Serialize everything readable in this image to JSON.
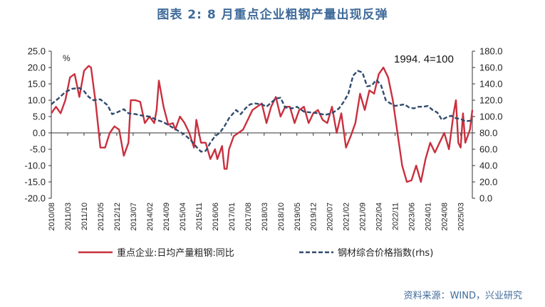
{
  "title": "图表 2:  8 月重点企业粗钢产量出现反弹",
  "source": "资料来源：WIND，兴业研究",
  "colors": {
    "primary": "#c9303e",
    "secondary": "#2f4a6d",
    "title": "#3f6b9a",
    "axis": "#333333"
  },
  "chart_data": {
    "type": "line",
    "title": "图表 2:  8 月重点企业粗钢产量出现反弹",
    "left_axis": {
      "unit_label": "%",
      "range": [
        -20,
        25
      ],
      "ticks": [
        "25.0",
        "20.0",
        "15.0",
        "10.0",
        "5.0",
        "0.0",
        "-5.0",
        "-10.0",
        "-15.0",
        "-20.0"
      ]
    },
    "right_axis": {
      "range": [
        0,
        180
      ],
      "ticks": [
        "180.0",
        "160.0",
        "140.0",
        "120.0",
        "100.0",
        "80.0",
        "60.0",
        "40.0",
        "20.0",
        "0.0"
      ]
    },
    "x_range": [
      "2010-08",
      "2025-08"
    ],
    "x_ticks": [
      "2010/08",
      "2011/03",
      "2011/10",
      "2012/05",
      "2012/12",
      "2013/07",
      "2014/02",
      "2014/09",
      "2015/04",
      "2015/11",
      "2016/06",
      "2017/01",
      "2017/08",
      "2018/03",
      "2018/10",
      "2019/05",
      "2019/12",
      "2020/07",
      "2021/02",
      "2021/09",
      "2022/04",
      "2022/11",
      "2023/06",
      "2024/01",
      "2024/08",
      "2025/03"
    ],
    "annotation": "1994. 4=100",
    "legend_position": "bottom",
    "series": [
      {
        "name": "重点企业:日均产量粗钢:同比",
        "axis": "left",
        "style": "solid",
        "points": [
          [
            "2010-08",
            6
          ],
          [
            "2010-10",
            8
          ],
          [
            "2010-12",
            6
          ],
          [
            "2011-02",
            10
          ],
          [
            "2011-04",
            17
          ],
          [
            "2011-06",
            18
          ],
          [
            "2011-08",
            11
          ],
          [
            "2011-10",
            19
          ],
          [
            "2011-12",
            20.5
          ],
          [
            "2012-01",
            20
          ],
          [
            "2012-03",
            9
          ],
          [
            "2012-05",
            -4.5
          ],
          [
            "2012-07",
            -4.5
          ],
          [
            "2012-09",
            0
          ],
          [
            "2012-11",
            2
          ],
          [
            "2013-01",
            1
          ],
          [
            "2013-03",
            -7
          ],
          [
            "2013-05",
            -3
          ],
          [
            "2013-06",
            10
          ],
          [
            "2013-08",
            10
          ],
          [
            "2013-10",
            9.5
          ],
          [
            "2013-12",
            3
          ],
          [
            "2014-02",
            5
          ],
          [
            "2014-04",
            3
          ],
          [
            "2014-05",
            7
          ],
          [
            "2014-06",
            16
          ],
          [
            "2014-08",
            8
          ],
          [
            "2014-10",
            2.5
          ],
          [
            "2014-12",
            3
          ],
          [
            "2015-01",
            1
          ],
          [
            "2015-03",
            5
          ],
          [
            "2015-05",
            3
          ],
          [
            "2015-07",
            0
          ],
          [
            "2015-09",
            -4.5
          ],
          [
            "2015-10",
            4
          ],
          [
            "2015-12",
            -3
          ],
          [
            "2016-02",
            -3
          ],
          [
            "2016-04",
            -8
          ],
          [
            "2016-06",
            -5
          ],
          [
            "2016-07",
            -8
          ],
          [
            "2016-09",
            -4
          ],
          [
            "2016-10",
            -11
          ],
          [
            "2016-11",
            -11
          ],
          [
            "2016-12",
            -5
          ],
          [
            "2017-02",
            -1
          ],
          [
            "2017-04",
            0
          ],
          [
            "2017-06",
            1
          ],
          [
            "2017-08",
            4
          ],
          [
            "2017-10",
            7
          ],
          [
            "2017-12",
            8
          ],
          [
            "2018-02",
            9
          ],
          [
            "2018-04",
            3
          ],
          [
            "2018-06",
            8
          ],
          [
            "2018-08",
            11
          ],
          [
            "2018-10",
            5
          ],
          [
            "2018-12",
            8
          ],
          [
            "2019-02",
            8
          ],
          [
            "2019-04",
            3
          ],
          [
            "2019-06",
            7
          ],
          [
            "2019-08",
            8
          ],
          [
            "2019-10",
            3
          ],
          [
            "2019-12",
            6
          ],
          [
            "2020-02",
            7
          ],
          [
            "2020-04",
            4
          ],
          [
            "2020-06",
            3
          ],
          [
            "2020-08",
            8
          ],
          [
            "2020-10",
            0
          ],
          [
            "2020-12",
            6
          ],
          [
            "2021-02",
            -4.5
          ],
          [
            "2021-04",
            -1
          ],
          [
            "2021-06",
            3
          ],
          [
            "2021-08",
            12
          ],
          [
            "2021-10",
            7
          ],
          [
            "2021-12",
            13
          ],
          [
            "2022-02",
            12
          ],
          [
            "2022-04",
            18
          ],
          [
            "2022-06",
            20
          ],
          [
            "2022-08",
            17
          ],
          [
            "2022-10",
            10
          ],
          [
            "2022-12",
            0
          ],
          [
            "2023-02",
            -10
          ],
          [
            "2023-04",
            -15
          ],
          [
            "2023-06",
            -14.5
          ],
          [
            "2023-08",
            -10
          ],
          [
            "2023-10",
            -15
          ],
          [
            "2023-12",
            -8
          ],
          [
            "2024-02",
            -3
          ],
          [
            "2024-04",
            -6
          ],
          [
            "2024-06",
            -3
          ],
          [
            "2024-08",
            0
          ],
          [
            "2024-10",
            -5
          ],
          [
            "2024-12",
            6
          ],
          [
            "2025-01",
            10
          ],
          [
            "2025-02",
            -3
          ],
          [
            "2025-03",
            -4.5
          ],
          [
            "2025-04",
            6
          ],
          [
            "2025-05",
            -3
          ],
          [
            "2025-06",
            -1
          ],
          [
            "2025-07",
            1
          ],
          [
            "2025-08",
            7
          ]
        ]
      },
      {
        "name": "钢材综合价格指数(rhs)",
        "axis": "right",
        "style": "dashed",
        "points": [
          [
            "2010-08",
            115
          ],
          [
            "2010-11",
            122
          ],
          [
            "2011-02",
            130
          ],
          [
            "2011-05",
            134
          ],
          [
            "2011-08",
            135
          ],
          [
            "2011-10",
            131
          ],
          [
            "2011-12",
            124
          ],
          [
            "2012-02",
            120
          ],
          [
            "2012-05",
            121
          ],
          [
            "2012-08",
            114
          ],
          [
            "2012-10",
            103
          ],
          [
            "2012-12",
            105
          ],
          [
            "2013-03",
            109
          ],
          [
            "2013-05",
            104
          ],
          [
            "2013-08",
            103
          ],
          [
            "2013-11",
            101
          ],
          [
            "2014-02",
            100
          ],
          [
            "2014-05",
            96
          ],
          [
            "2014-08",
            93
          ],
          [
            "2014-11",
            88
          ],
          [
            "2015-02",
            83
          ],
          [
            "2015-05",
            78
          ],
          [
            "2015-08",
            70
          ],
          [
            "2015-10",
            63
          ],
          [
            "2015-12",
            57
          ],
          [
            "2016-02",
            58
          ],
          [
            "2016-04",
            68
          ],
          [
            "2016-06",
            76
          ],
          [
            "2016-08",
            80
          ],
          [
            "2016-10",
            88
          ],
          [
            "2016-12",
            98
          ],
          [
            "2017-03",
            108
          ],
          [
            "2017-05",
            103
          ],
          [
            "2017-07",
            110
          ],
          [
            "2017-09",
            115
          ],
          [
            "2017-11",
            116
          ],
          [
            "2018-02",
            115
          ],
          [
            "2018-04",
            112
          ],
          [
            "2018-06",
            117
          ],
          [
            "2018-08",
            122
          ],
          [
            "2018-10",
            123
          ],
          [
            "2018-12",
            111
          ],
          [
            "2019-03",
            110
          ],
          [
            "2019-05",
            112
          ],
          [
            "2019-08",
            106
          ],
          [
            "2019-11",
            105
          ],
          [
            "2020-02",
            104
          ],
          [
            "2020-05",
            102
          ],
          [
            "2020-08",
            104
          ],
          [
            "2020-11",
            110
          ],
          [
            "2021-01",
            118
          ],
          [
            "2021-03",
            128
          ],
          [
            "2021-05",
            150
          ],
          [
            "2021-07",
            156
          ],
          [
            "2021-09",
            154
          ],
          [
            "2021-11",
            137
          ],
          [
            "2022-01",
            138
          ],
          [
            "2022-03",
            145
          ],
          [
            "2022-05",
            138
          ],
          [
            "2022-07",
            120
          ],
          [
            "2022-09",
            116
          ],
          [
            "2022-11",
            113
          ],
          [
            "2023-01",
            114
          ],
          [
            "2023-03",
            115
          ],
          [
            "2023-05",
            111
          ],
          [
            "2023-07",
            110
          ],
          [
            "2023-09",
            112
          ],
          [
            "2023-11",
            112
          ],
          [
            "2024-01",
            113
          ],
          [
            "2024-03",
            108
          ],
          [
            "2024-05",
            105
          ],
          [
            "2024-07",
            96
          ],
          [
            "2024-09",
            99
          ],
          [
            "2024-11",
            101
          ],
          [
            "2025-01",
            98
          ],
          [
            "2025-03",
            97
          ],
          [
            "2025-05",
            94
          ],
          [
            "2025-07",
            95
          ],
          [
            "2025-08",
            93
          ]
        ]
      }
    ]
  }
}
